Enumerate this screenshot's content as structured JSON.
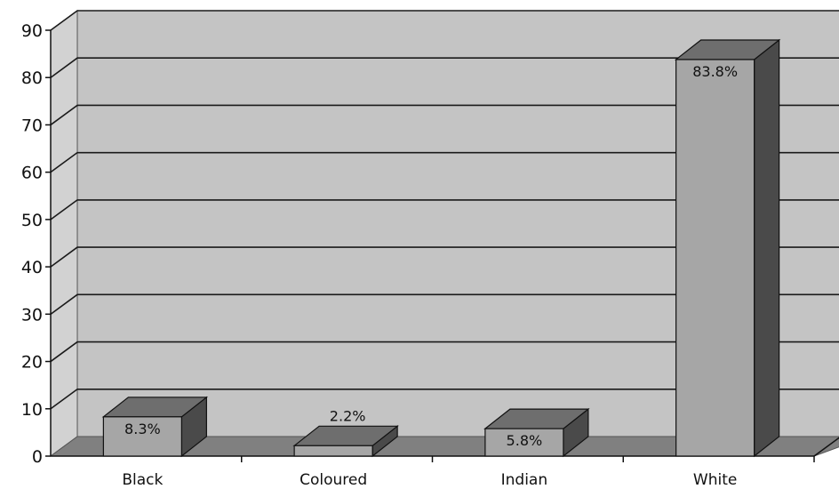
{
  "chart_data": {
    "type": "bar",
    "categories": [
      "Black",
      "Coloured",
      "Indian",
      "White"
    ],
    "values": [
      8.3,
      2.2,
      5.8,
      83.8
    ],
    "data_labels": [
      "8.3%",
      "2.2%",
      "5.8%",
      "83.8%"
    ],
    "y_ticks": [
      "0",
      "10",
      "20",
      "30",
      "40",
      "50",
      "60",
      "70",
      "80",
      "90"
    ],
    "ylim": [
      0,
      90
    ],
    "grid": true,
    "style": "3d-column",
    "colors": {
      "wall": "#c4c4c4",
      "floor": "#808080",
      "bar_front": "#a6a6a6",
      "bar_top": "#6e6e6e",
      "bar_side": "#4a4a4a",
      "gridline": "#1a1a1a"
    }
  }
}
